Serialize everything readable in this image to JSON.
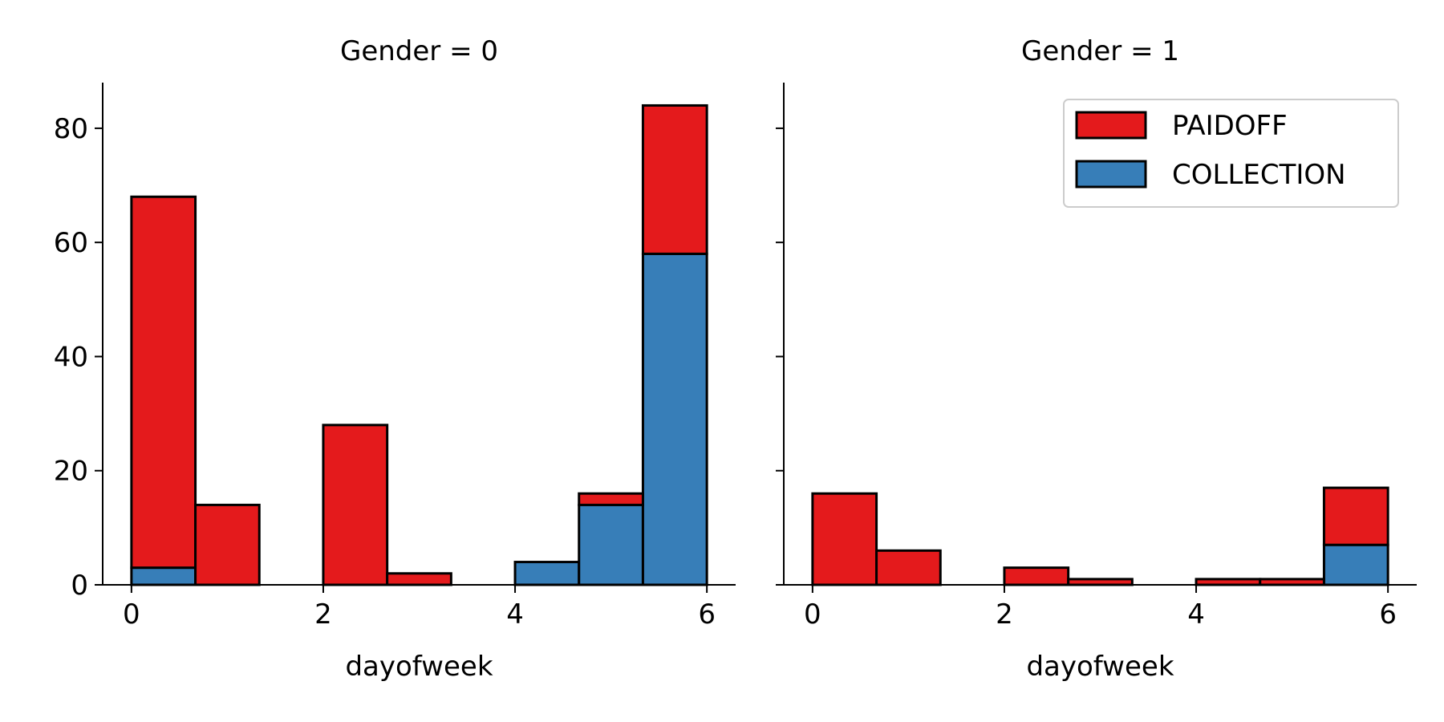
{
  "chart_data": {
    "type": "bar",
    "stacked": true,
    "shared_y_axis": true,
    "bin_edges": [
      0,
      0.6667,
      1.3333,
      2,
      2.6667,
      3.3333,
      4,
      4.6667,
      5.3333,
      6
    ],
    "ylim": [
      0,
      88
    ],
    "xlim": [
      -0.3,
      6.3
    ],
    "xticks": [
      "0",
      "2",
      "4",
      "6"
    ],
    "yticks": [
      "0",
      "20",
      "40",
      "60",
      "80"
    ],
    "colors": {
      "PAIDOFF": "#e41a1c",
      "COLLECTION": "#377eb8",
      "edge": "#000000"
    },
    "legend": {
      "placement": "top-right",
      "entries": [
        "PAIDOFF",
        "COLLECTION"
      ]
    },
    "grid": false,
    "panels": [
      {
        "title": "Gender = 0",
        "xlabel": "dayofweek",
        "ylabel": "",
        "series": [
          {
            "name": "COLLECTION",
            "values": [
              3,
              0,
              0,
              0,
              0,
              0,
              4,
              14,
              58
            ]
          },
          {
            "name": "PAIDOFF",
            "values": [
              65,
              14,
              0,
              28,
              2,
              0,
              0,
              2,
              26
            ]
          }
        ]
      },
      {
        "title": "Gender = 1",
        "xlabel": "dayofweek",
        "ylabel": "",
        "series": [
          {
            "name": "COLLECTION",
            "values": [
              0,
              0,
              0,
              0,
              0,
              0,
              0,
              0,
              7
            ]
          },
          {
            "name": "PAIDOFF",
            "values": [
              16,
              6,
              0,
              3,
              1,
              0,
              1,
              1,
              10
            ]
          }
        ]
      }
    ]
  }
}
